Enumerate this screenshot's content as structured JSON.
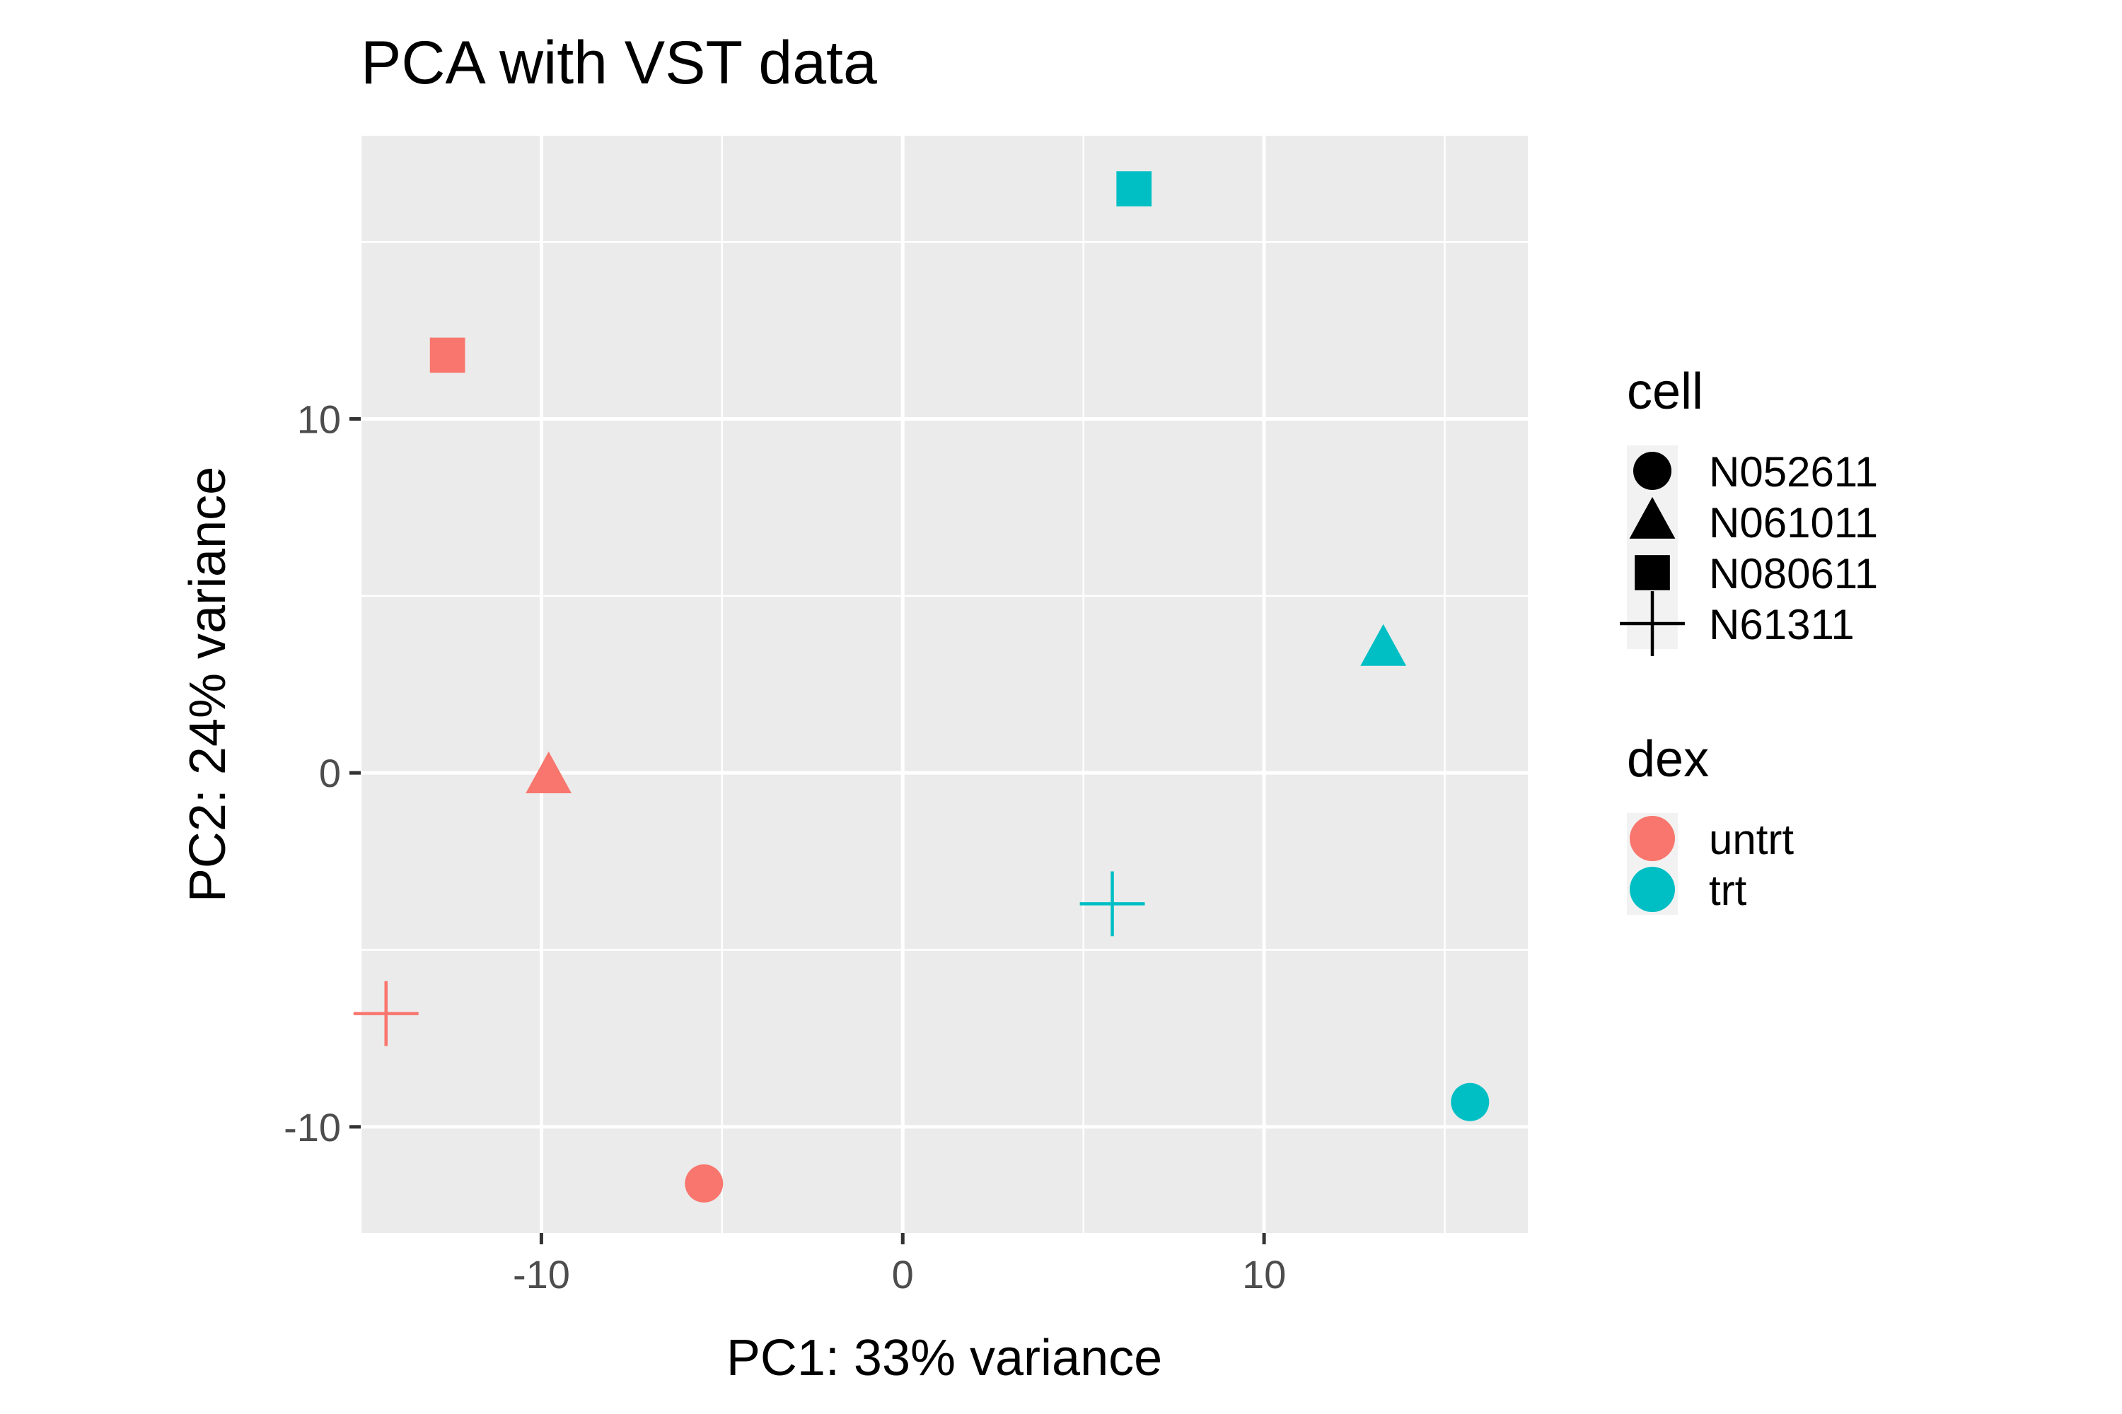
{
  "chart_data": {
    "type": "scatter",
    "title": "PCA with VST data",
    "xlabel": "PC1: 33% variance",
    "ylabel": "PC2: 24% variance",
    "xlim": [
      -15,
      17.3
    ],
    "ylim": [
      -13,
      18
    ],
    "x_ticks": [
      -10,
      0,
      10
    ],
    "y_ticks": [
      -10,
      0,
      10
    ],
    "x_tick_labels": [
      "-10",
      "0",
      "10"
    ],
    "y_tick_labels": [
      "-10",
      "0",
      "10"
    ],
    "grid": true,
    "legend_position": "right",
    "colors": {
      "untrt": "#F8766D",
      "trt": "#00BFC4"
    },
    "points": [
      {
        "x": -5.5,
        "y": -11.6,
        "cell": "N052611",
        "dex": "untrt"
      },
      {
        "x": -9.8,
        "y": -0.1,
        "cell": "N061011",
        "dex": "untrt"
      },
      {
        "x": -12.6,
        "y": 11.8,
        "cell": "N080611",
        "dex": "untrt"
      },
      {
        "x": -14.3,
        "y": -6.8,
        "cell": "N61311",
        "dex": "untrt"
      },
      {
        "x": 15.7,
        "y": -9.3,
        "cell": "N052611",
        "dex": "trt"
      },
      {
        "x": 13.3,
        "y": 3.5,
        "cell": "N061011",
        "dex": "trt"
      },
      {
        "x": 6.4,
        "y": 16.5,
        "cell": "N080611",
        "dex": "trt"
      },
      {
        "x": 5.8,
        "y": -3.7,
        "cell": "N61311",
        "dex": "trt"
      }
    ],
    "legends": [
      {
        "title": "cell",
        "kind": "shape",
        "entries": [
          {
            "label": "N052611",
            "shape": "circle"
          },
          {
            "label": "N061011",
            "shape": "triangle"
          },
          {
            "label": "N080611",
            "shape": "square"
          },
          {
            "label": "N61311",
            "shape": "plus"
          }
        ]
      },
      {
        "title": "dex",
        "kind": "color",
        "entries": [
          {
            "label": "untrt",
            "color": "#F8766D"
          },
          {
            "label": "trt",
            "color": "#00BFC4"
          }
        ]
      }
    ]
  }
}
